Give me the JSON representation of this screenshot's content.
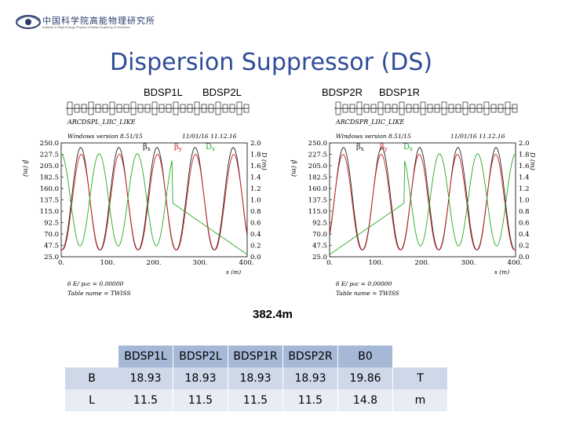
{
  "logo": {
    "chinese": "中国科学院高能物理研究所",
    "english": "Institute of High Energy Physics  Chinese Academy of Sciences"
  },
  "title": "Dispersion Suppressor (DS)",
  "section_labels": {
    "bdsp1l": "BDSP1L",
    "bdsp2l": "BDSP2L",
    "bdsp2r": "BDSP2R",
    "bdsp1r": "BDSP1R"
  },
  "plots": [
    {
      "lattice_name": "ARCDSPL_LIIC_LIKE",
      "windows_version": "Windows version 8.51/15",
      "date": "11/01/16  11.12.16",
      "legend": {
        "bx": "β",
        "bx_sub": "x",
        "by": "β",
        "by_sub": "y",
        "dx": "D",
        "dx_sub": "x"
      },
      "ylabel_left": "β (m)",
      "ylabel_right": "D (m)",
      "yticks_left": [
        "250.0",
        "227.5",
        "205.0",
        "182.5",
        "160.0",
        "137.5",
        "115.0",
        "92.5",
        "70.0",
        "47.5",
        "25.0"
      ],
      "yticks_right": [
        "2.0",
        "1.8",
        "1.6",
        "1.4",
        "1.2",
        "1.0",
        "0.8",
        "0.6",
        "0.4",
        "0.2",
        "0.0"
      ],
      "xticks": [
        "0.",
        "100.",
        "200.",
        "300.",
        "400."
      ],
      "xlabel": "s (m)",
      "footer1": "δ E/ p₀c  =  0.00000",
      "footer2": "Table name = TWISS",
      "mirror": false
    },
    {
      "lattice_name": "ARCDSPR_LIIC_LIKE",
      "windows_version": "Windows version 8.51/15",
      "date": "11/01/16  11.12.16",
      "legend": {
        "bx": "β",
        "bx_sub": "x",
        "by": "β",
        "by_sub": "y",
        "dx": "D",
        "dx_sub": "x"
      },
      "ylabel_left": "β (m)",
      "ylabel_right": "D (m)",
      "yticks_left": [
        "250.0",
        "227.5",
        "205.0",
        "182.5",
        "160.0",
        "137.5",
        "115.0",
        "92.5",
        "70.0",
        "47.5",
        "25.0"
      ],
      "yticks_right": [
        "2.0",
        "1.8",
        "1.6",
        "1.4",
        "1.2",
        "1.0",
        "0.8",
        "0.6",
        "0.4",
        "0.2",
        "0.0"
      ],
      "xticks": [
        "0.",
        "100.",
        "200.",
        "300.",
        "400."
      ],
      "xlabel": "s (m)",
      "footer1": "δ E/ p₀c  =  0.00000",
      "footer2": "Table name = TWISS",
      "mirror": true
    }
  ],
  "length_label": "382.4m",
  "table": {
    "header": [
      "",
      "BDSP1L",
      "BDSP2L",
      "BDSP1R",
      "BDSP2R",
      "B0",
      ""
    ],
    "rows": [
      [
        "B",
        "18.93",
        "18.93",
        "18.93",
        "18.93",
        "19.86",
        "T"
      ],
      [
        "L",
        "11.5",
        "11.5",
        "11.5",
        "11.5",
        "14.8",
        "m"
      ]
    ]
  },
  "colors": {
    "title": "#2f4c99",
    "beta_x": "#222222",
    "beta_y": "#cc2222",
    "disp_x": "#22aa22",
    "table_header": "#a5b9d6"
  }
}
